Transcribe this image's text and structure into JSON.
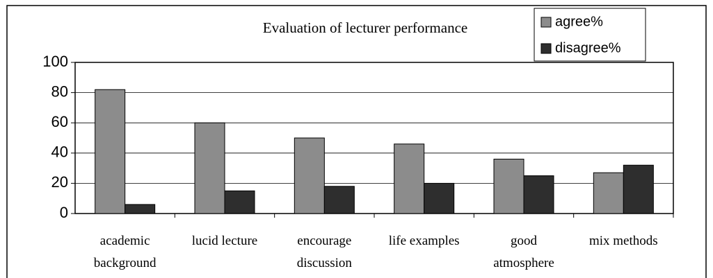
{
  "chart_data": {
    "type": "bar",
    "title": "Evaluation of lecturer performance",
    "categories": [
      "academic background",
      "lucid lecture",
      "encourage discussion",
      "life examples",
      "good atmosphere",
      "mix methods"
    ],
    "series": [
      {
        "name": "agree%",
        "color": "#8c8c8c",
        "values": [
          82,
          60,
          50,
          46,
          36,
          27
        ]
      },
      {
        "name": "disagree%",
        "color": "#2e2e2e",
        "values": [
          6,
          15,
          18,
          20,
          25,
          32
        ]
      }
    ],
    "ylim": [
      0,
      100
    ],
    "yticks": [
      0,
      20,
      40,
      60,
      80,
      100
    ],
    "grid": true,
    "legend": "top-right"
  }
}
